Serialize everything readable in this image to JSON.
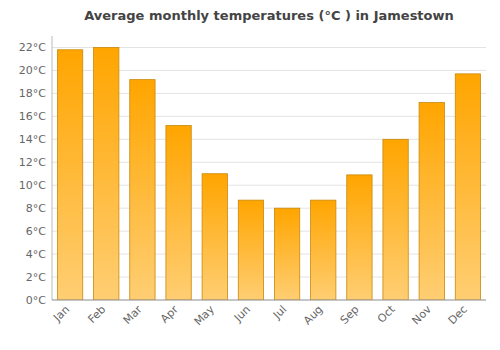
{
  "chart_data": {
    "type": "bar",
    "title": "Average monthly temperatures (°C ) in Jamestown",
    "categories": [
      "Jan",
      "Feb",
      "Mar",
      "Apr",
      "May",
      "Jun",
      "Jul",
      "Aug",
      "Sep",
      "Oct",
      "Nov",
      "Dec"
    ],
    "values": [
      21.8,
      22.0,
      19.2,
      15.2,
      11.0,
      8.7,
      8.0,
      8.7,
      10.9,
      14.0,
      17.2,
      19.7
    ],
    "color": "#FFA500",
    "ylim": [
      0,
      23
    ],
    "yticks": [
      {
        "value": 0,
        "label": "0°C"
      },
      {
        "value": 2,
        "label": "2°C"
      },
      {
        "value": 4,
        "label": "4°C"
      },
      {
        "value": 6,
        "label": "6°C"
      },
      {
        "value": 8,
        "label": "8°C"
      },
      {
        "value": 10,
        "label": "10°C"
      },
      {
        "value": 12,
        "label": "12°C"
      },
      {
        "value": 14,
        "label": "14°C"
      },
      {
        "value": 16,
        "label": "16°C"
      },
      {
        "value": 18,
        "label": "18°C"
      },
      {
        "value": 20,
        "label": "20°C"
      },
      {
        "value": 22,
        "label": "22°C"
      }
    ],
    "grid": true
  }
}
